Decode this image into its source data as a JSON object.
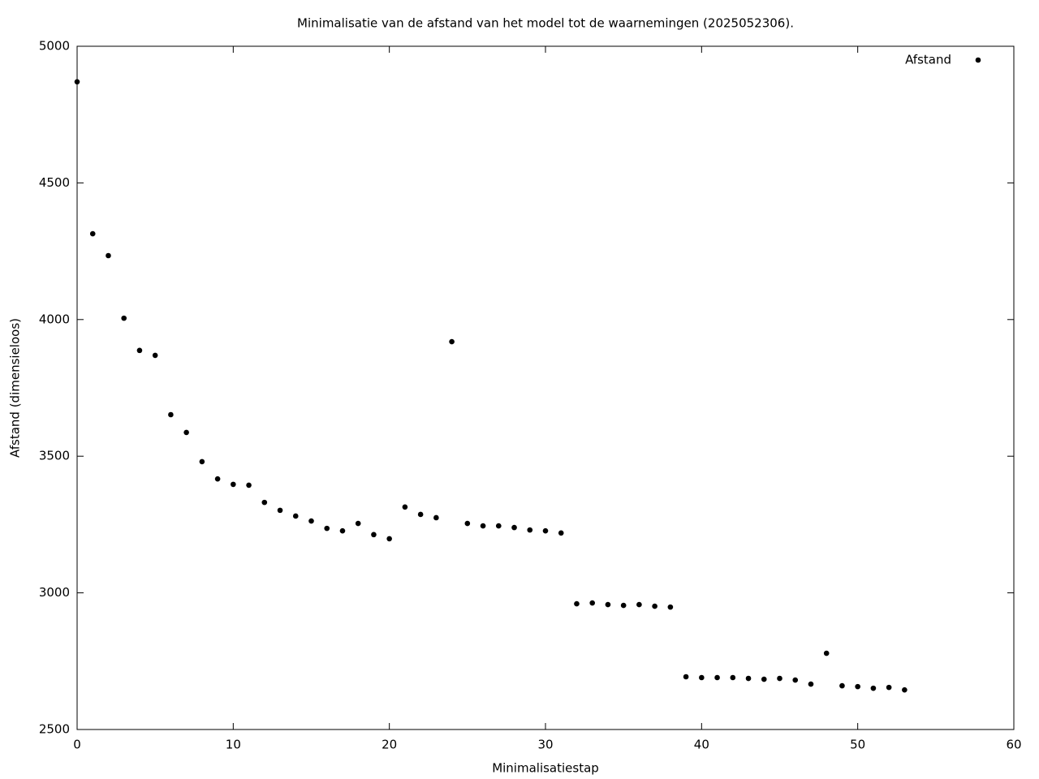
{
  "chart_data": {
    "type": "scatter",
    "title": "Minimalisatie van de afstand van het model tot de waarnemingen (2025052306).",
    "x_label": "Minimalisatiestap",
    "y_label": "Afstand (dimensieloos)",
    "xlim": [
      0,
      60
    ],
    "xticks": [
      0,
      10,
      20,
      30,
      40,
      50,
      60
    ],
    "ylim": [
      2500,
      5000
    ],
    "yticks": [
      2500,
      3000,
      3500,
      4000,
      4500,
      5000
    ],
    "legend": "top-right",
    "series": [
      {
        "name": "Afstand",
        "color": "#000000",
        "x": [
          0,
          1,
          2,
          3,
          4,
          5,
          6,
          7,
          8,
          9,
          10,
          11,
          12,
          13,
          14,
          15,
          16,
          17,
          18,
          19,
          20,
          21,
          22,
          23,
          24,
          25,
          26,
          27,
          28,
          29,
          30,
          31,
          32,
          33,
          34,
          35,
          36,
          37,
          38,
          39,
          40,
          41,
          42,
          43,
          44,
          45,
          46,
          47,
          48,
          49,
          50,
          51,
          52,
          53
        ],
        "values": [
          4870,
          4314,
          4234,
          4005,
          3887,
          3869,
          3652,
          3587,
          3480,
          3417,
          3397,
          3394,
          3331,
          3302,
          3281,
          3263,
          3236,
          3227,
          3254,
          3213,
          3198,
          3314,
          3287,
          3275,
          3919,
          3254,
          3245,
          3245,
          3239,
          3230,
          3227,
          3219,
          2960,
          2963,
          2957,
          2954,
          2957,
          2951,
          2948,
          2693,
          2690,
          2690,
          2690,
          2687,
          2684,
          2687,
          2681,
          2666,
          2779,
          2660,
          2657,
          2651,
          2654,
          2645
        ]
      }
    ]
  }
}
